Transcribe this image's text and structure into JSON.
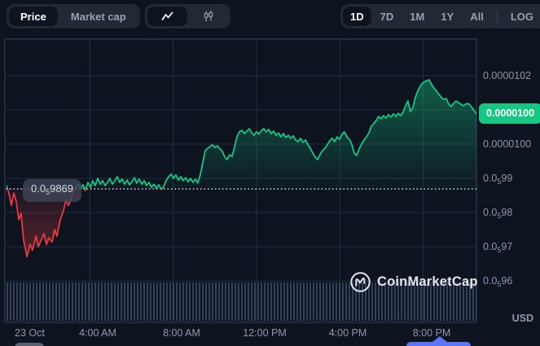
{
  "toolbar": {
    "metric_tabs": [
      {
        "label": "Price",
        "active": true
      },
      {
        "label": "Market cap",
        "active": false
      }
    ],
    "chart_type_tabs": [
      {
        "icon": "line-chart-icon",
        "active": true
      },
      {
        "icon": "candlestick-icon",
        "active": false
      }
    ],
    "range_tabs": [
      {
        "label": "1D",
        "active": true
      },
      {
        "label": "7D",
        "active": false
      },
      {
        "label": "1M",
        "active": false
      },
      {
        "label": "1Y",
        "active": false
      },
      {
        "label": "All",
        "active": false
      }
    ],
    "log_label": "LOG",
    "more_label": "···"
  },
  "watermark": {
    "text": "CoinMarketCap"
  },
  "axis": {
    "currency_label": "USD"
  },
  "colors": {
    "up": "#16c784",
    "down": "#ea3943",
    "background": "#0d1420",
    "gridline": "#222c3f",
    "plot_border": "#38425a",
    "axis_text": "#8e96aa",
    "current_price_badge": "#16c784",
    "baseline_dots": "#e2e6ee",
    "volume_bar": "#54638a",
    "stub_blue": "#5a76f6",
    "stub_grey": "#59616f"
  },
  "chart_data": {
    "type": "line",
    "title": "1D price chart (23 Oct), USD",
    "price_unit": "1e-7 USD (100 = 0.0000100)",
    "time_unit": "hours since 00:00 23 Oct",
    "x_range_hours": [
      0,
      22.56
    ],
    "y_range": [
      94.79,
      103.07
    ],
    "grid": true,
    "legend": "none",
    "baseline": {
      "value": 98.69,
      "label": {
        "pre": "0.0",
        "sub": "5",
        "post": "9869"
      }
    },
    "current_price": {
      "value": 100.88,
      "label": "0.0000100"
    },
    "y_gridlines": [
      102,
      101,
      100,
      99,
      98,
      97,
      96
    ],
    "y_ticks": [
      {
        "value": 102,
        "pre": "0.0000102"
      },
      {
        "value": 100,
        "pre": "0.0000100"
      },
      {
        "value": 99,
        "pre": "0.0",
        "sub": "5",
        "post": "99"
      },
      {
        "value": 98,
        "pre": "0.0",
        "sub": "5",
        "post": "98"
      },
      {
        "value": 97,
        "pre": "0.0",
        "sub": "5",
        "post": "97"
      },
      {
        "value": 96,
        "pre": "0.0",
        "sub": "5",
        "post": "96"
      }
    ],
    "x_ticks": [
      {
        "label": "23 Oct",
        "hour": 0.4,
        "align": "left",
        "gridline": false
      },
      {
        "label": "4:00 AM",
        "hour": 4,
        "align": "center",
        "gridline": true
      },
      {
        "label": "8:00 AM",
        "hour": 8,
        "align": "center",
        "gridline": true
      },
      {
        "label": "12:00 PM",
        "hour": 12,
        "align": "center",
        "gridline": true
      },
      {
        "label": "4:00 PM",
        "hour": 16,
        "align": "center",
        "gridline": true
      },
      {
        "label": "8:00 PM",
        "hour": 20,
        "align": "center",
        "gridline": true
      }
    ],
    "series": [
      {
        "name": "price",
        "points": [
          [
            0,
            98.79
          ],
          [
            0.12,
            98.55
          ],
          [
            0.23,
            98.21
          ],
          [
            0.35,
            98.57
          ],
          [
            0.47,
            98.31
          ],
          [
            0.59,
            97.79
          ],
          [
            0.7,
            97.98
          ],
          [
            0.82,
            97.19
          ],
          [
            0.98,
            96.71
          ],
          [
            1.13,
            97.07
          ],
          [
            1.25,
            96.9
          ],
          [
            1.41,
            97.31
          ],
          [
            1.52,
            97
          ],
          [
            1.64,
            97.17
          ],
          [
            1.8,
            97.38
          ],
          [
            1.92,
            97.07
          ],
          [
            2.03,
            97.26
          ],
          [
            2.19,
            97.14
          ],
          [
            2.31,
            97.5
          ],
          [
            2.42,
            97.31
          ],
          [
            2.58,
            97.79
          ],
          [
            2.74,
            98.07
          ],
          [
            2.85,
            98.38
          ],
          [
            2.97,
            98.21
          ],
          [
            3.09,
            98.38
          ],
          [
            3.21,
            98.62
          ],
          [
            3.32,
            98.74
          ],
          [
            3.44,
            98.83
          ],
          [
            3.56,
            98.69
          ],
          [
            3.67,
            98.81
          ],
          [
            3.79,
            98.64
          ],
          [
            3.91,
            98.88
          ],
          [
            4.03,
            98.74
          ],
          [
            4.14,
            98.93
          ],
          [
            4.26,
            98.79
          ],
          [
            4.38,
            99
          ],
          [
            4.5,
            98.83
          ],
          [
            4.61,
            98.93
          ],
          [
            4.73,
            98.79
          ],
          [
            4.85,
            98.88
          ],
          [
            4.96,
            99
          ],
          [
            5.08,
            98.83
          ],
          [
            5.2,
            98.93
          ],
          [
            5.32,
            99.05
          ],
          [
            5.43,
            98.88
          ],
          [
            5.55,
            98.98
          ],
          [
            5.67,
            98.83
          ],
          [
            5.79,
            98.95
          ],
          [
            5.9,
            98.81
          ],
          [
            6.02,
            98.9
          ],
          [
            6.14,
            99.02
          ],
          [
            6.25,
            98.86
          ],
          [
            6.37,
            98.98
          ],
          [
            6.49,
            98.83
          ],
          [
            6.61,
            98.93
          ],
          [
            6.72,
            98.79
          ],
          [
            6.84,
            98.88
          ],
          [
            6.96,
            98.74
          ],
          [
            7.08,
            98.83
          ],
          [
            7.19,
            98.71
          ],
          [
            7.31,
            98.81
          ],
          [
            7.43,
            98.67
          ],
          [
            7.55,
            98.76
          ],
          [
            7.66,
            98.93
          ],
          [
            7.78,
            99.05
          ],
          [
            7.9,
            99.12
          ],
          [
            8.01,
            99
          ],
          [
            8.13,
            99.1
          ],
          [
            8.25,
            98.95
          ],
          [
            8.37,
            99.05
          ],
          [
            8.48,
            98.93
          ],
          [
            8.6,
            99.02
          ],
          [
            8.72,
            98.9
          ],
          [
            8.83,
            99
          ],
          [
            8.95,
            98.88
          ],
          [
            9.07,
            98.98
          ],
          [
            9.19,
            98.86
          ],
          [
            9.3,
            99.1
          ],
          [
            9.42,
            99.45
          ],
          [
            9.54,
            99.81
          ],
          [
            9.66,
            99.88
          ],
          [
            9.77,
            99.93
          ],
          [
            9.89,
            99.98
          ],
          [
            10.01,
            99.9
          ],
          [
            10.12,
            99.95
          ],
          [
            10.24,
            99.86
          ],
          [
            10.36,
            99.79
          ],
          [
            10.48,
            99.62
          ],
          [
            10.59,
            99.55
          ],
          [
            10.71,
            99.69
          ],
          [
            10.83,
            99.64
          ],
          [
            10.95,
            99.93
          ],
          [
            11.06,
            100.21
          ],
          [
            11.18,
            100.36
          ],
          [
            11.3,
            100.4
          ],
          [
            11.42,
            100.31
          ],
          [
            11.53,
            100.38
          ],
          [
            11.65,
            100.45
          ],
          [
            11.77,
            100.33
          ],
          [
            11.88,
            100.26
          ],
          [
            12,
            100.36
          ],
          [
            12.12,
            100.29
          ],
          [
            12.24,
            100.4
          ],
          [
            12.35,
            100.45
          ],
          [
            12.47,
            100.36
          ],
          [
            12.59,
            100.43
          ],
          [
            12.71,
            100.31
          ],
          [
            12.82,
            100.38
          ],
          [
            12.94,
            100.26
          ],
          [
            13.06,
            100.33
          ],
          [
            13.17,
            100.21
          ],
          [
            13.29,
            100.31
          ],
          [
            13.41,
            100.19
          ],
          [
            13.53,
            100.26
          ],
          [
            13.64,
            100.17
          ],
          [
            13.76,
            100.24
          ],
          [
            13.88,
            100.12
          ],
          [
            14,
            100.07
          ],
          [
            14.11,
            100.17
          ],
          [
            14.23,
            100.05
          ],
          [
            14.35,
            100.12
          ],
          [
            14.46,
            100
          ],
          [
            14.58,
            99.88
          ],
          [
            14.7,
            99.74
          ],
          [
            14.82,
            99.62
          ],
          [
            14.93,
            99.55
          ],
          [
            15.05,
            99.69
          ],
          [
            15.17,
            99.81
          ],
          [
            15.29,
            99.88
          ],
          [
            15.4,
            99.98
          ],
          [
            15.52,
            100.1
          ],
          [
            15.64,
            100.17
          ],
          [
            15.75,
            100.07
          ],
          [
            15.87,
            100.21
          ],
          [
            15.99,
            100.14
          ],
          [
            16.11,
            100.29
          ],
          [
            16.22,
            100.36
          ],
          [
            16.34,
            100.21
          ],
          [
            16.46,
            100.14
          ],
          [
            16.57,
            100
          ],
          [
            16.69,
            99.74
          ],
          [
            16.81,
            99.67
          ],
          [
            16.93,
            99.86
          ],
          [
            17.04,
            100
          ],
          [
            17.16,
            100.12
          ],
          [
            17.28,
            100.21
          ],
          [
            17.4,
            100.33
          ],
          [
            17.51,
            100.52
          ],
          [
            17.63,
            100.6
          ],
          [
            17.75,
            100.69
          ],
          [
            17.86,
            100.81
          ],
          [
            17.98,
            100.74
          ],
          [
            18.1,
            100.83
          ],
          [
            18.22,
            100.76
          ],
          [
            18.33,
            100.86
          ],
          [
            18.45,
            100.79
          ],
          [
            18.57,
            100.88
          ],
          [
            18.69,
            100.81
          ],
          [
            18.8,
            100.9
          ],
          [
            18.92,
            100.83
          ],
          [
            19.04,
            100.93
          ],
          [
            19.15,
            101.12
          ],
          [
            19.27,
            101.26
          ],
          [
            19.39,
            100.95
          ],
          [
            19.51,
            101.07
          ],
          [
            19.62,
            101.36
          ],
          [
            19.74,
            101.55
          ],
          [
            19.86,
            101.69
          ],
          [
            19.98,
            101.79
          ],
          [
            20.09,
            101.83
          ],
          [
            20.21,
            101.86
          ],
          [
            20.29,
            101.88
          ],
          [
            20.41,
            101.74
          ],
          [
            20.52,
            101.64
          ],
          [
            20.64,
            101.55
          ],
          [
            20.76,
            101.45
          ],
          [
            20.88,
            101.36
          ],
          [
            20.99,
            101.31
          ],
          [
            21.11,
            101.33
          ],
          [
            21.23,
            101.17
          ],
          [
            21.34,
            101.1
          ],
          [
            21.46,
            101.19
          ],
          [
            21.58,
            101.26
          ],
          [
            21.7,
            101.21
          ],
          [
            21.81,
            101.17
          ],
          [
            21.93,
            101.12
          ],
          [
            22.05,
            101.17
          ],
          [
            22.16,
            101.19
          ],
          [
            22.28,
            101.12
          ],
          [
            22.4,
            101.02
          ],
          [
            22.56,
            100.88
          ]
        ]
      }
    ]
  }
}
